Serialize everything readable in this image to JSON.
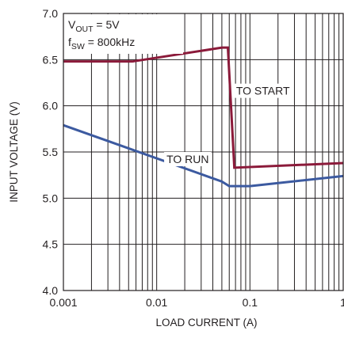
{
  "chart_data": {
    "type": "line",
    "title": "",
    "xlabel": "LOAD CURRENT (A)",
    "ylabel": "INPUT VOLTAGE (V)",
    "xscale": "log",
    "xlim": [
      0.001,
      1
    ],
    "ylim": [
      4.0,
      7.0
    ],
    "x_ticks": [
      0.001,
      0.01,
      0.1,
      1
    ],
    "x_tick_labels": [
      "0.001",
      "0.01",
      "0.1",
      "1"
    ],
    "y_ticks": [
      4.0,
      4.5,
      5.0,
      5.5,
      6.0,
      6.5,
      7.0
    ],
    "y_tick_labels": [
      "4.0",
      "4.5",
      "5.0",
      "5.5",
      "6.0",
      "6.5",
      "7.0"
    ],
    "grid": true,
    "conditions": {
      "vout": {
        "main": "V",
        "sub": "OUT",
        "rest": " = 5V"
      },
      "fsw": {
        "main": "f",
        "sub": "SW",
        "rest": " = 800kHz"
      }
    },
    "series": [
      {
        "name": "TO START",
        "color": "#8b1a3a",
        "points": [
          [
            0.001,
            6.48
          ],
          [
            0.0055,
            6.48
          ],
          [
            0.05,
            6.63
          ],
          [
            0.058,
            6.63
          ],
          [
            0.068,
            5.33
          ],
          [
            1.0,
            5.38
          ]
        ]
      },
      {
        "name": "TO RUN",
        "color": "#3c5aa0",
        "points": [
          [
            0.001,
            5.79
          ],
          [
            0.05,
            5.18
          ],
          [
            0.06,
            5.13
          ],
          [
            0.1,
            5.13
          ],
          [
            1.0,
            5.24
          ]
        ]
      }
    ],
    "annotations": [
      {
        "text": "TO START",
        "series": "TO START"
      },
      {
        "text": "TO RUN",
        "series": "TO RUN"
      }
    ]
  }
}
